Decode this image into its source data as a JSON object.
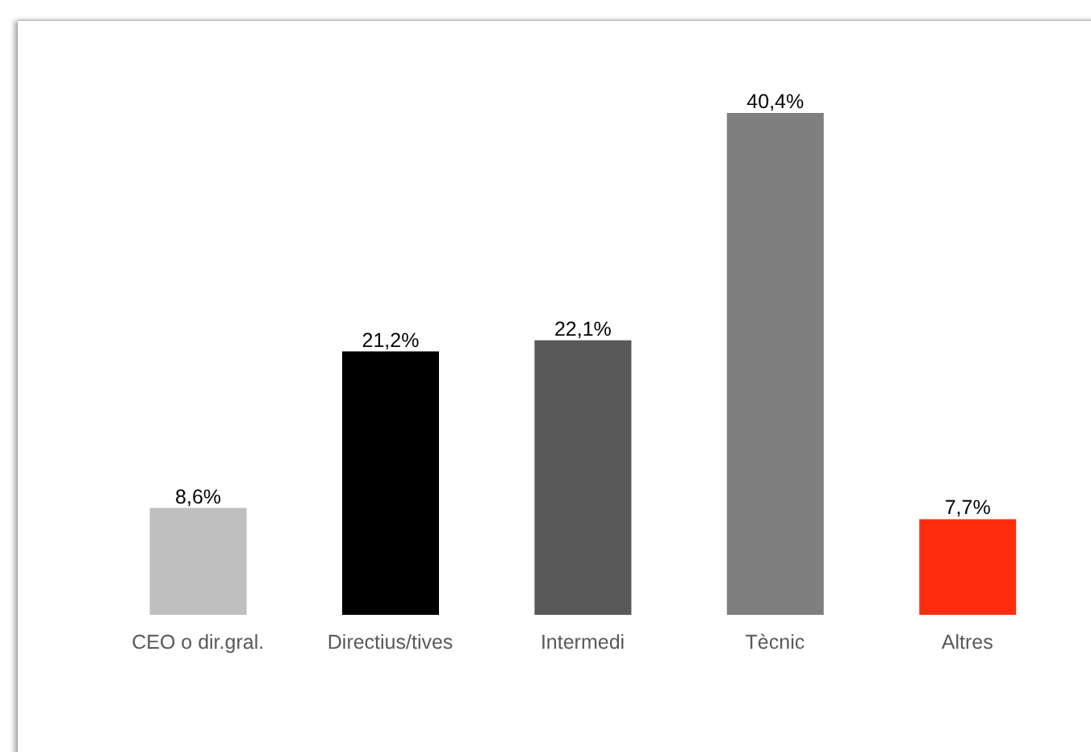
{
  "chart_data": {
    "type": "bar",
    "categories": [
      "CEO o dir.gral.",
      "Directius/tives",
      "Intermedi",
      "Tècnic",
      "Altres"
    ],
    "values": [
      8.6,
      21.2,
      22.1,
      40.4,
      7.7
    ],
    "colors": [
      "#bfbfbf",
      "#000000",
      "#595959",
      "#7f7f7f",
      "#ff2d0d"
    ],
    "value_labels": [
      "8,6%",
      "21,2%",
      "22,1%",
      "40,4%",
      "7,7%"
    ]
  }
}
